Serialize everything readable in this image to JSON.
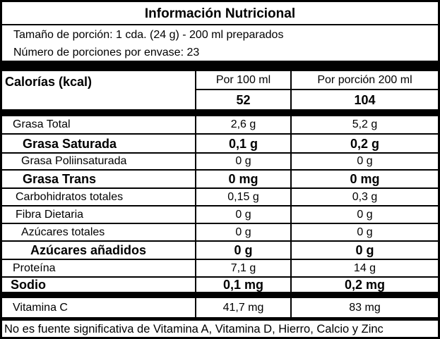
{
  "title": "Información Nutricional",
  "serving_size": "Tamaño de porción: 1 cda. (24 g) - 200 ml preparados",
  "servings_per_container": "Número de porciones por envase: 23",
  "calories": {
    "label": "Calorías (kcal)",
    "col1_header": "Por 100  ml",
    "col2_header": "Por porción 200 ml",
    "col1_value": "52",
    "col2_value": "104"
  },
  "rows": [
    {
      "name": "Grasa Total",
      "v1": "2,6 g",
      "v2": "5,2 g"
    },
    {
      "name": "Grasa Saturada",
      "v1": "0,1 g",
      "v2": "0,2 g"
    },
    {
      "name": "Grasa Poliinsaturada",
      "v1": "0 g",
      "v2": "0 g"
    },
    {
      "name": "Grasa Trans",
      "v1": "0 mg",
      "v2": "0 mg"
    },
    {
      "name": "Carbohidratos totales",
      "v1": "0,15 g",
      "v2": "0,3 g"
    },
    {
      "name": "Fibra Dietaria",
      "v1": "0 g",
      "v2": "0 g"
    },
    {
      "name": "Azúcares totales",
      "v1": "0 g",
      "v2": "0 g"
    },
    {
      "name": "Azúcares añadidos",
      "v1": "0 g",
      "v2": "0 g"
    },
    {
      "name": "Proteína",
      "v1": "7,1 g",
      "v2": "14 g"
    },
    {
      "name": "Sodio",
      "v1": "0,1 mg",
      "v2": "0,2 mg"
    },
    {
      "name": "Vitamina C",
      "v1": "41,7 mg",
      "v2": "83 mg"
    }
  ],
  "footer": "No es fuente significativa de  Vitamina A, Vitamina D, Hierro, Calcio y Zinc"
}
